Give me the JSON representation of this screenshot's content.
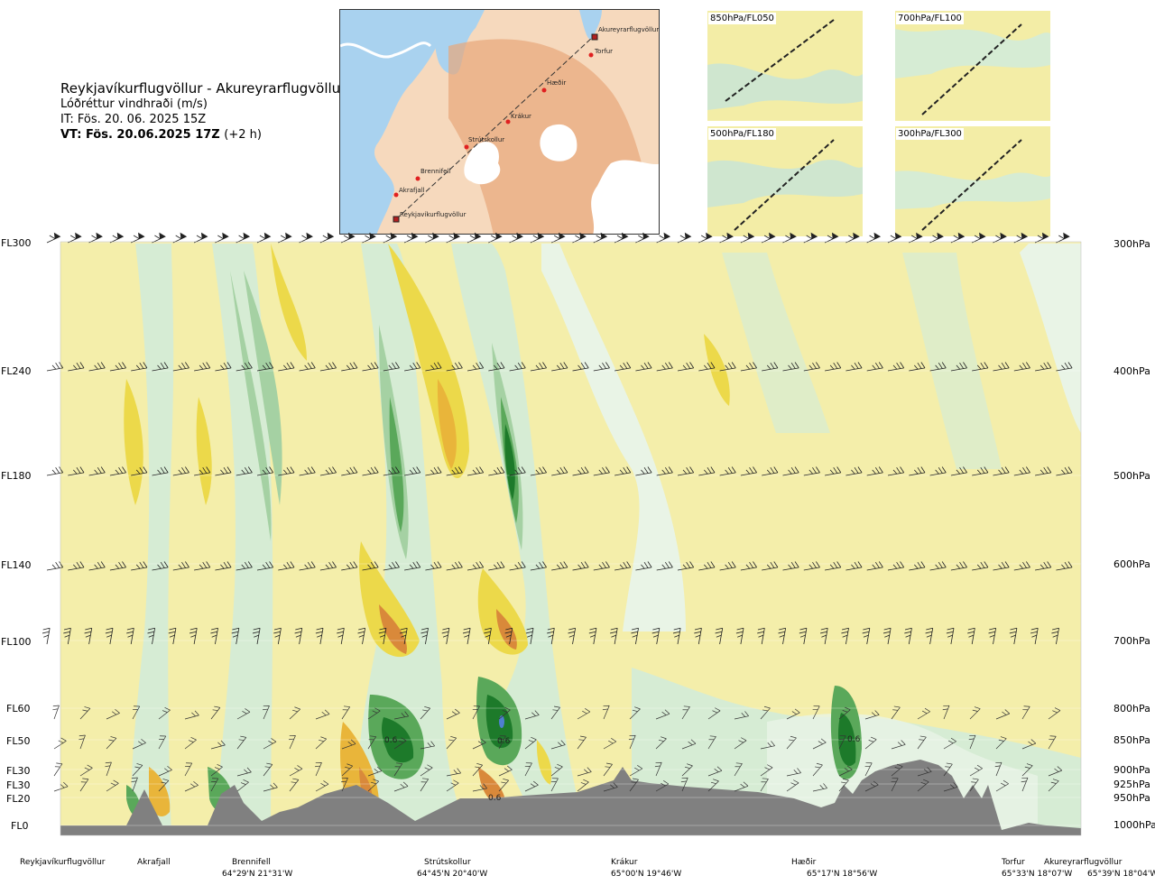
{
  "header": {
    "route": "Reykjavíkurflugvöllur - Akureyrarflugvöllur",
    "variable": "Lóðréttur vindhraði (m/s)",
    "init_time": "IT: Fös. 20. 06. 2025 15Z",
    "valid_time": "VT: Fös. 20.06.2025 17Z",
    "lead": "(+2 h)"
  },
  "map": {
    "places": [
      "Akureyrarflugvöllur",
      "Torfur",
      "Hæðir",
      "Krákur",
      "Strútskollur",
      "Brennifell",
      "Akrafjall",
      "Reykjavíkurflugvöllur"
    ]
  },
  "mini_maps": [
    "850hPa/FL050",
    "700hPa/FL100",
    "500hPa/FL180",
    "300hPa/FL300"
  ],
  "chart_data": {
    "type": "heatmap",
    "title": "Lóðréttur vindhraði (m/s)",
    "left_axis_labels": [
      "FL300",
      "FL240",
      "FL180",
      "FL140",
      "FL100",
      "FL60",
      "FL50",
      "FL30",
      "FL30",
      "FL20",
      "FL0"
    ],
    "right_axis_labels": [
      "300hPa",
      "400hPa",
      "500hPa",
      "600hPa",
      "700hPa",
      "800hPa",
      "850hPa",
      "900hPa",
      "925hPa",
      "950hPa",
      "1000hPa"
    ],
    "pressure_levels_hPa": [
      300,
      400,
      500,
      600,
      700,
      800,
      850,
      900,
      925,
      950,
      1000
    ],
    "waypoints": [
      {
        "name": "Reykjavíkurflugvöllur",
        "coord": ""
      },
      {
        "name": "Akrafjall",
        "coord": ""
      },
      {
        "name": "Brennifell",
        "coord": "64°29'N 21°31'W"
      },
      {
        "name": "Strútskollur",
        "coord": "64°45'N 20°40'W"
      },
      {
        "name": "Krákur",
        "coord": "65°00'N 19°46'W"
      },
      {
        "name": "Hæðir",
        "coord": "65°17'N 18°56'W"
      },
      {
        "name": "Torfur",
        "coord": "65°33'N 18°07'W"
      },
      {
        "name": "Akureyrarflugvöllur",
        "coord": "65°39'N 18°04'W"
      }
    ],
    "contour_labels": [
      "0.6",
      "0.6",
      "0.6",
      "0.6"
    ],
    "colors": {
      "down_light": "#f4eeaa",
      "down_mid": "#ecd94a",
      "down_strong": "#e9b53a",
      "down_max": "#d9893a",
      "up_light": "#d6ecd4",
      "up_mid": "#a5d1a3",
      "up_strong": "#5aa85a",
      "up_max": "#1d7a2a",
      "terrain": "#808080"
    }
  }
}
